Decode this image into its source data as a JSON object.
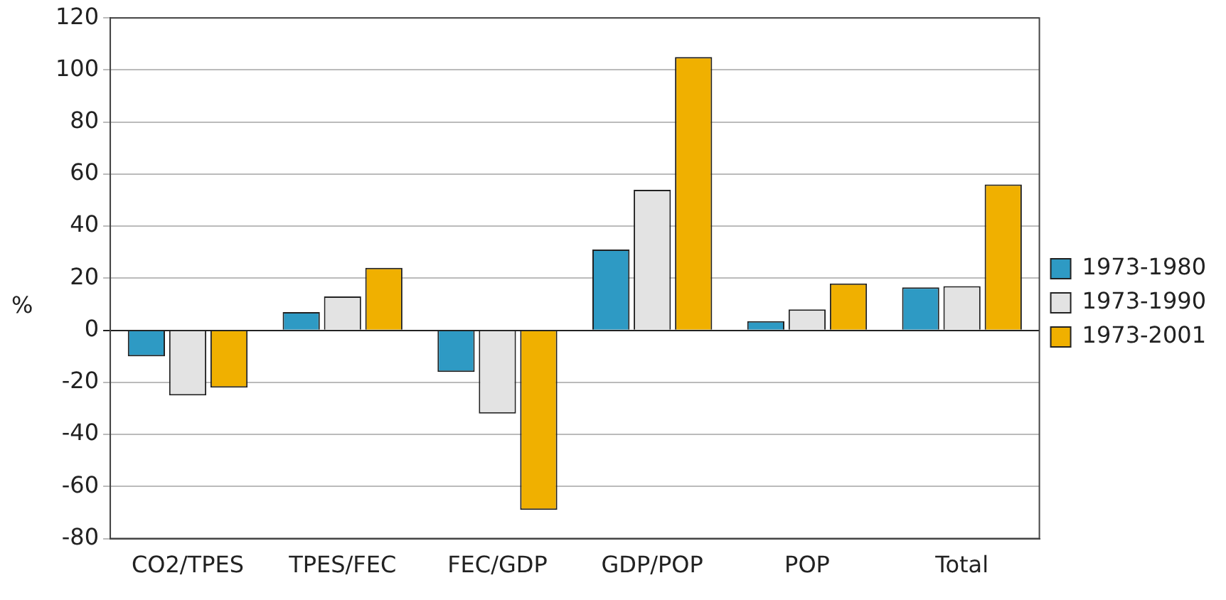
{
  "chart_data": {
    "type": "bar",
    "ylabel": "%",
    "categories": [
      "CO2/TPES",
      "TPES/FEC",
      "FEC/GDP",
      "GDP/POP",
      "POP",
      "Total"
    ],
    "series": [
      {
        "name": "1973-1980",
        "color": "#2e9ac4",
        "values": [
          -10,
          7,
          -16,
          31,
          3.5,
          16.5
        ]
      },
      {
        "name": "1973-1990",
        "color": "#e3e3e3",
        "values": [
          -25,
          13,
          -32,
          54,
          8,
          17
        ]
      },
      {
        "name": "1973-2001",
        "color": "#f0b000",
        "values": [
          -22,
          24,
          -69,
          105,
          18,
          56
        ]
      }
    ],
    "ylim": [
      -80,
      120
    ],
    "yticks": [
      -80,
      -60,
      -40,
      -20,
      0,
      20,
      40,
      60,
      80,
      100,
      120
    ],
    "grid": "y",
    "legend": "right"
  }
}
